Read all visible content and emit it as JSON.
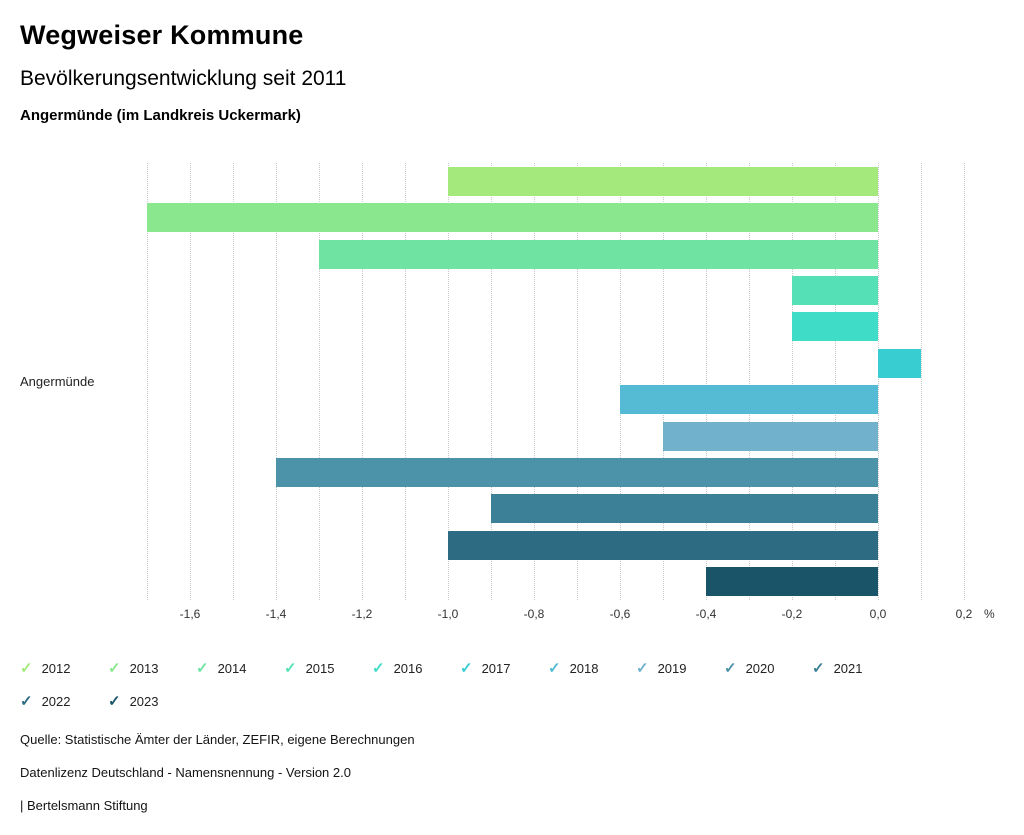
{
  "app_title": "Wegweiser Kommune",
  "chart_data": {
    "type": "bar",
    "orientation": "horizontal",
    "title": "Bevölkerungsentwicklung seit 2011",
    "subtitle": "Angermünde (im Landkreis Uckermark)",
    "category": "Angermünde",
    "unit": "%",
    "xlabel": "",
    "xlim": [
      -1.7,
      0.2
    ],
    "grid": true,
    "gridline_step": 0.1,
    "gridline_color": "#c9c9c9",
    "legend_position": "bottom",
    "x_ticks": [
      {
        "value": -1.6,
        "label": "-1,6"
      },
      {
        "value": -1.4,
        "label": "-1,4"
      },
      {
        "value": -1.2,
        "label": "-1,2"
      },
      {
        "value": -1.0,
        "label": "-1,0"
      },
      {
        "value": -0.8,
        "label": "-0,8"
      },
      {
        "value": -0.6,
        "label": "-0,6"
      },
      {
        "value": -0.4,
        "label": "-0,4"
      },
      {
        "value": -0.2,
        "label": "-0,2"
      },
      {
        "value": 0.0,
        "label": "0,0"
      },
      {
        "value": 0.2,
        "label": "0,2"
      }
    ],
    "series": [
      {
        "year": "2012",
        "value": -1.0,
        "color": "#a4e97c"
      },
      {
        "year": "2013",
        "value": -1.7,
        "color": "#8ae78e"
      },
      {
        "year": "2014",
        "value": -1.3,
        "color": "#6fe4a2"
      },
      {
        "year": "2015",
        "value": -0.2,
        "color": "#55e0b6"
      },
      {
        "year": "2016",
        "value": -0.2,
        "color": "#3fdcc8"
      },
      {
        "year": "2017",
        "value": 0.1,
        "color": "#38cdd1"
      },
      {
        "year": "2018",
        "value": -0.6,
        "color": "#55bad3"
      },
      {
        "year": "2019",
        "value": -0.5,
        "color": "#72b1cb"
      },
      {
        "year": "2020",
        "value": -1.4,
        "color": "#4c93a9"
      },
      {
        "year": "2021",
        "value": -0.9,
        "color": "#3c8097"
      },
      {
        "year": "2022",
        "value": -1.0,
        "color": "#2d6b83"
      },
      {
        "year": "2023",
        "value": -0.4,
        "color": "#1a5468"
      }
    ]
  },
  "legend": {
    "check_glyph": "✓"
  },
  "footer": {
    "source": "Quelle: Statistische Ämter der Länder, ZEFIR, eigene Berechnungen",
    "license": "Datenlizenz Deutschland - Namensnennung - Version 2.0",
    "attribution": "| Bertelsmann Stiftung"
  }
}
